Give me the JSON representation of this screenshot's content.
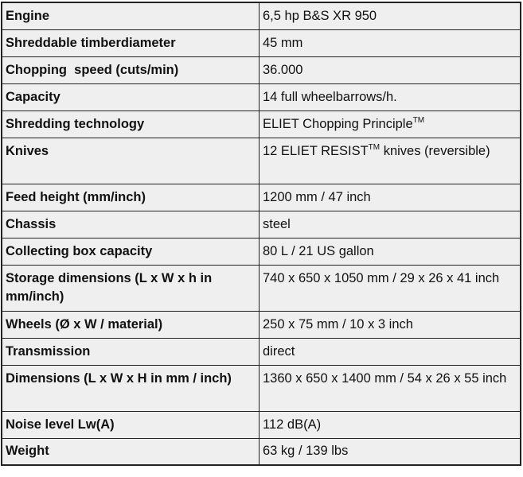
{
  "rows": [
    {
      "label": "Engine",
      "value": "6,5 hp B&S XR 950"
    },
    {
      "label": "Shreddable timberdiameter",
      "value": "45 mm"
    },
    {
      "label": "Chopping  speed (cuts/min)",
      "value": "36.000"
    },
    {
      "label": "Capacity",
      "value": "14 full wheelbarrows/h."
    },
    {
      "label": "Shredding technology",
      "value": "ELIET Chopping Principle",
      "value_sup": "TM"
    },
    {
      "label": "Knives",
      "value": "12 ELIET RESIST",
      "value_sup": "TM",
      "value_rest": " knives (reversible)"
    },
    {
      "label": "Feed height (mm/inch)",
      "value": "1200 mm / 47 inch"
    },
    {
      "label": "Chassis",
      "value": "steel"
    },
    {
      "label": "Collecting box capacity",
      "value": "80 L / 21 US gallon"
    },
    {
      "label": "Storage dimensions (L x W x h in mm/inch)",
      "value": "740 x 650 x 1050 mm / 29 x 26 x 41 inch"
    },
    {
      "label": "Wheels (Ø x W / material)",
      "value": "250 x 75 mm / 10 x 3 inch"
    },
    {
      "label": "Transmission",
      "value": "direct"
    },
    {
      "label": "Dimensions (L x W x H in mm / inch)",
      "value": "1360 x 650 x 1400 mm / 54 x 26 x 55 inch"
    },
    {
      "label": "Noise level Lw(A)",
      "value": "112 dB(A)"
    },
    {
      "label": "Weight",
      "value": "63 kg / 139 lbs"
    }
  ]
}
